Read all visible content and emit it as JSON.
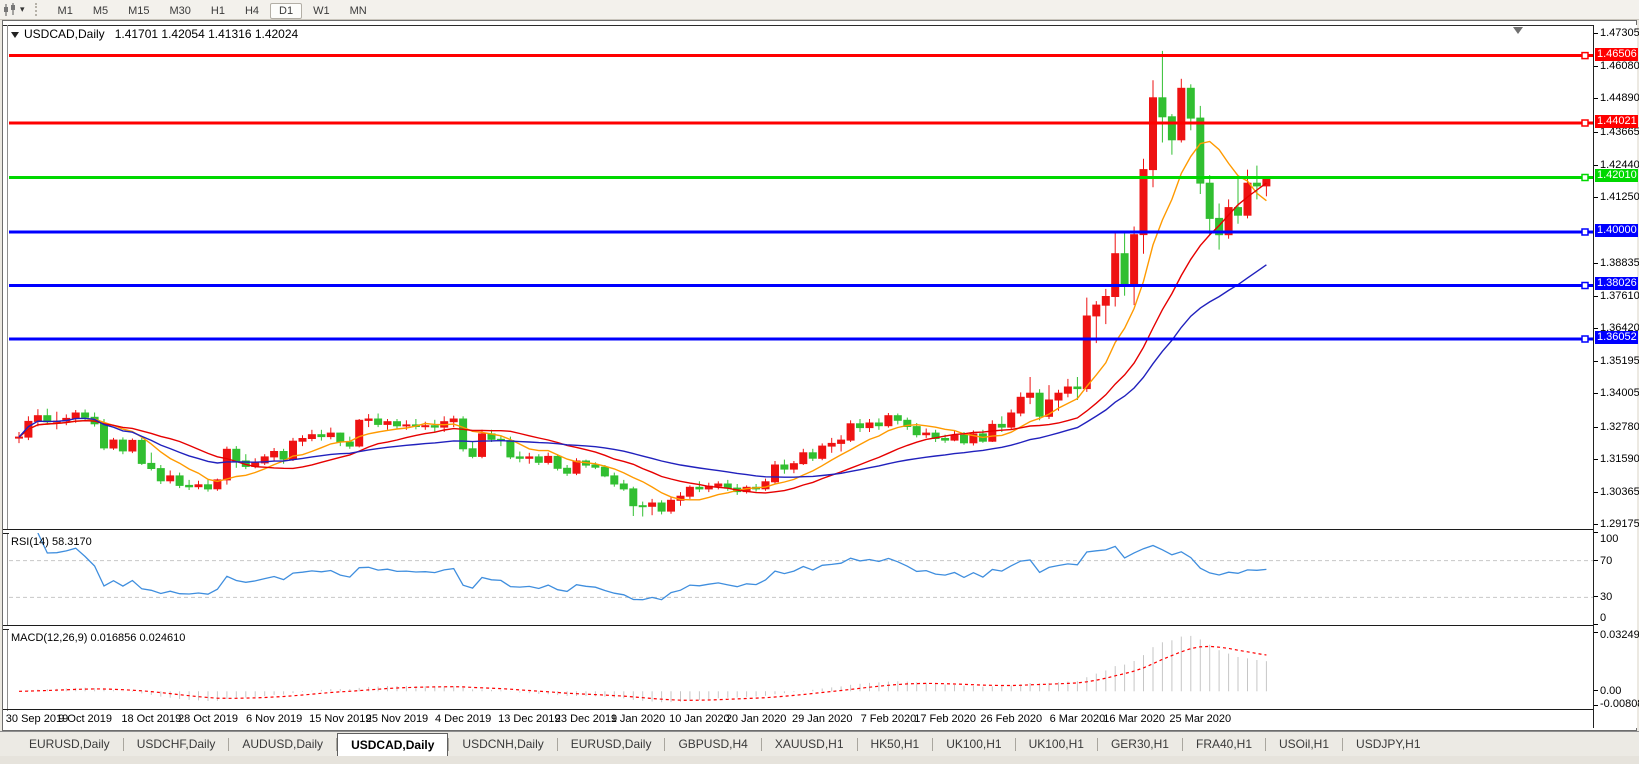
{
  "toolbar": {
    "timeframes": [
      "M1",
      "M5",
      "M15",
      "M30",
      "H1",
      "H4",
      "D1",
      "W1",
      "MN"
    ],
    "active_timeframe": "D1"
  },
  "chart_title": {
    "symbol": "USDCAD,Daily",
    "ohlc": "1.41701 1.42054 1.41316 1.42024"
  },
  "price_axis": {
    "ticks": [
      "1.47305",
      "1.46080",
      "1.44890",
      "1.43665",
      "1.42440",
      "1.41250",
      "1.38835",
      "1.37610",
      "1.36420",
      "1.35195",
      "1.34005",
      "1.32780",
      "1.31590",
      "1.30365",
      "1.29175"
    ]
  },
  "rsi": {
    "label": "RSI(14)",
    "value": "58.3170",
    "period": 14,
    "levels": [
      70,
      30
    ],
    "ticks": [
      "100",
      "70",
      "30",
      "0"
    ],
    "line_color": "#3f8ede",
    "level_color": "#c8c8c8",
    "range": [
      0,
      100
    ]
  },
  "macd": {
    "label": "MACD(12,26,9)",
    "macd_value": "0.016856",
    "signal_value": "0.024610",
    "fast": 12,
    "slow": 26,
    "signal": 9,
    "ticks": [
      {
        "label": "0.032493",
        "value": 0.032493
      },
      {
        "label": "0.00",
        "value": 0
      },
      {
        "label": "-0.008086",
        "value": -0.008086
      }
    ],
    "hist_color": "#c6c6c6",
    "signal_color": "#ff0000",
    "range": [
      -0.0098,
      0.0345
    ]
  },
  "tabs": {
    "items": [
      "EURUSD,Daily",
      "USDCHF,Daily",
      "AUDUSD,Daily",
      "USDCAD,Daily",
      "USDCNH,Daily",
      "EURUSD,Daily",
      "GBPUSD,H4",
      "XAUUSD,H1",
      "HK50,H1",
      "UK100,H1",
      "UK100,H1",
      "GER30,H1",
      "FRA40,H1",
      "USOil,H1",
      "USDJPY,H1"
    ],
    "active_index": 3
  },
  "chart_data": {
    "type": "candlestick",
    "symbol": "USDCAD",
    "timeframe": "Daily",
    "price_range": [
      1.2904,
      1.476
    ],
    "colors": {
      "up": "#ee1212",
      "down": "#31bf31"
    },
    "hlines": [
      {
        "price": 1.46506,
        "label": "1.46506",
        "color": "#ff0000"
      },
      {
        "price": 1.44021,
        "label": "1.44021",
        "color": "#ff0000"
      },
      {
        "price": 1.4201,
        "label": "1.42010",
        "color": "#00d800"
      },
      {
        "price": 1.4,
        "label": "1.40000",
        "color": "#0000ff"
      },
      {
        "price": 1.38026,
        "label": "1.38026",
        "color": "#0000ff"
      },
      {
        "price": 1.36052,
        "label": "1.36052",
        "color": "#0000ff"
      }
    ],
    "moving_averages": [
      {
        "type": "sma",
        "period": 8,
        "color": "#ff9a00"
      },
      {
        "type": "sma",
        "period": 17,
        "color": "#e60000"
      },
      {
        "type": "lwma",
        "period": 45,
        "color": "#2121bd"
      }
    ],
    "date_ticks": [
      {
        "label": "30 Sep 2019",
        "bar": 0
      },
      {
        "label": "9 Oct 2019",
        "bar": 7
      },
      {
        "label": "18 Oct 2019",
        "bar": 14
      },
      {
        "label": "28 Oct 2019",
        "bar": 20
      },
      {
        "label": "6 Nov 2019",
        "bar": 27
      },
      {
        "label": "15 Nov 2019",
        "bar": 34
      },
      {
        "label": "25 Nov 2019",
        "bar": 40
      },
      {
        "label": "4 Dec 2019",
        "bar": 47
      },
      {
        "label": "13 Dec 2019",
        "bar": 54
      },
      {
        "label": "23 Dec 2019",
        "bar": 60
      },
      {
        "label": "1 Jan 2020",
        "bar": 65.5
      },
      {
        "label": "10 Jan 2020",
        "bar": 72
      },
      {
        "label": "20 Jan 2020",
        "bar": 78
      },
      {
        "label": "29 Jan 2020",
        "bar": 85
      },
      {
        "label": "7 Feb 2020",
        "bar": 92
      },
      {
        "label": "17 Feb 2020",
        "bar": 98
      },
      {
        "label": "26 Feb 2020",
        "bar": 105
      },
      {
        "label": "6 Mar 2020",
        "bar": 112
      },
      {
        "label": "16 Mar 2020",
        "bar": 118
      },
      {
        "label": "25 Mar 2020",
        "bar": 125
      }
    ],
    "candles": [
      [
        1.324,
        1.3262,
        1.3221,
        1.3243
      ],
      [
        1.3243,
        1.332,
        1.3232,
        1.3301
      ],
      [
        1.3301,
        1.3346,
        1.3283,
        1.3322
      ],
      [
        1.3322,
        1.3348,
        1.3289,
        1.33
      ],
      [
        1.33,
        1.3337,
        1.3272,
        1.3302
      ],
      [
        1.3302,
        1.3327,
        1.3287,
        1.3312
      ],
      [
        1.3312,
        1.3343,
        1.3296,
        1.3332
      ],
      [
        1.3332,
        1.3345,
        1.3304,
        1.3316
      ],
      [
        1.3316,
        1.3334,
        1.3282,
        1.3292
      ],
      [
        1.3292,
        1.331,
        1.3195,
        1.3203
      ],
      [
        1.3203,
        1.324,
        1.3196,
        1.3232
      ],
      [
        1.3232,
        1.3242,
        1.318,
        1.3192
      ],
      [
        1.3192,
        1.3238,
        1.3184,
        1.3231
      ],
      [
        1.3231,
        1.324,
        1.314,
        1.3146
      ],
      [
        1.3146,
        1.3186,
        1.312,
        1.3127
      ],
      [
        1.3127,
        1.314,
        1.307,
        1.3082
      ],
      [
        1.3082,
        1.312,
        1.3072,
        1.31
      ],
      [
        1.31,
        1.3112,
        1.3055,
        1.3065
      ],
      [
        1.3065,
        1.3085,
        1.3048,
        1.306
      ],
      [
        1.306,
        1.3082,
        1.3051,
        1.3067
      ],
      [
        1.3067,
        1.3085,
        1.3042,
        1.3052
      ],
      [
        1.3052,
        1.309,
        1.3045,
        1.3085
      ],
      [
        1.3085,
        1.3208,
        1.3068,
        1.3198
      ],
      [
        1.3198,
        1.321,
        1.313,
        1.3155
      ],
      [
        1.3155,
        1.318,
        1.3125,
        1.3135
      ],
      [
        1.3135,
        1.3165,
        1.3128,
        1.3148
      ],
      [
        1.3148,
        1.318,
        1.314,
        1.317
      ],
      [
        1.317,
        1.3203,
        1.3155,
        1.319
      ],
      [
        1.319,
        1.32,
        1.3145,
        1.3162
      ],
      [
        1.3162,
        1.324,
        1.3155,
        1.3228
      ],
      [
        1.3228,
        1.325,
        1.321,
        1.3238
      ],
      [
        1.3238,
        1.327,
        1.3228,
        1.3252
      ],
      [
        1.3252,
        1.327,
        1.323,
        1.3245
      ],
      [
        1.3245,
        1.3278,
        1.3235,
        1.3258
      ],
      [
        1.3258,
        1.326,
        1.321,
        1.3225
      ],
      [
        1.3225,
        1.3245,
        1.32,
        1.321
      ],
      [
        1.321,
        1.331,
        1.3205,
        1.3305
      ],
      [
        1.3305,
        1.3328,
        1.328,
        1.331
      ],
      [
        1.331,
        1.333,
        1.328,
        1.329
      ],
      [
        1.329,
        1.331,
        1.327,
        1.33
      ],
      [
        1.33,
        1.331,
        1.3275,
        1.3285
      ],
      [
        1.3285,
        1.3305,
        1.327,
        1.3288
      ],
      [
        1.3288,
        1.331,
        1.3272,
        1.3282
      ],
      [
        1.3282,
        1.33,
        1.327,
        1.3285
      ],
      [
        1.3285,
        1.3307,
        1.3262,
        1.328
      ],
      [
        1.328,
        1.332,
        1.3262,
        1.33
      ],
      [
        1.33,
        1.3322,
        1.328,
        1.331
      ],
      [
        1.331,
        1.332,
        1.319,
        1.32
      ],
      [
        1.32,
        1.3225,
        1.3165,
        1.3172
      ],
      [
        1.3172,
        1.327,
        1.3165,
        1.3255
      ],
      [
        1.3255,
        1.327,
        1.3225,
        1.3235
      ],
      [
        1.3235,
        1.325,
        1.321,
        1.323
      ],
      [
        1.323,
        1.3245,
        1.3162,
        1.317
      ],
      [
        1.317,
        1.319,
        1.315,
        1.3165
      ],
      [
        1.3165,
        1.3185,
        1.3145,
        1.317
      ],
      [
        1.317,
        1.318,
        1.314,
        1.315
      ],
      [
        1.315,
        1.3186,
        1.3142,
        1.3172
      ],
      [
        1.3172,
        1.318,
        1.312,
        1.3128
      ],
      [
        1.3128,
        1.314,
        1.31,
        1.311
      ],
      [
        1.311,
        1.3165,
        1.3103,
        1.3155
      ],
      [
        1.3155,
        1.316,
        1.313,
        1.314
      ],
      [
        1.314,
        1.315,
        1.3125,
        1.3132
      ],
      [
        1.3132,
        1.314,
        1.3095,
        1.31
      ],
      [
        1.31,
        1.3112,
        1.306,
        1.307
      ],
      [
        1.307,
        1.3085,
        1.3045,
        1.3052
      ],
      [
        1.3052,
        1.306,
        1.2952,
        1.299
      ],
      [
        1.299,
        1.3005,
        1.295,
        1.2988
      ],
      [
        1.2988,
        1.3015,
        1.2955,
        1.3
      ],
      [
        1.3,
        1.301,
        1.2958,
        1.297
      ],
      [
        1.297,
        1.3022,
        1.296,
        1.301
      ],
      [
        1.301,
        1.304,
        1.299,
        1.3025
      ],
      [
        1.3025,
        1.3065,
        1.3015,
        1.3058
      ],
      [
        1.3058,
        1.308,
        1.304,
        1.3052
      ],
      [
        1.3052,
        1.3075,
        1.304,
        1.3062
      ],
      [
        1.3062,
        1.308,
        1.305,
        1.307
      ],
      [
        1.307,
        1.3085,
        1.3045,
        1.3055
      ],
      [
        1.3055,
        1.307,
        1.303,
        1.3042
      ],
      [
        1.3042,
        1.3065,
        1.3035,
        1.3058
      ],
      [
        1.3058,
        1.307,
        1.3042,
        1.3052
      ],
      [
        1.3052,
        1.309,
        1.3045,
        1.3078
      ],
      [
        1.3078,
        1.3155,
        1.307,
        1.314
      ],
      [
        1.314,
        1.316,
        1.3108,
        1.3125
      ],
      [
        1.3125,
        1.3155,
        1.311,
        1.3145
      ],
      [
        1.3145,
        1.32,
        1.314,
        1.3185
      ],
      [
        1.3185,
        1.32,
        1.3155,
        1.3165
      ],
      [
        1.3165,
        1.322,
        1.3158,
        1.321
      ],
      [
        1.321,
        1.324,
        1.3185,
        1.322
      ],
      [
        1.322,
        1.325,
        1.319,
        1.3232
      ],
      [
        1.3232,
        1.3305,
        1.3225,
        1.3292
      ],
      [
        1.3292,
        1.331,
        1.3262,
        1.3278
      ],
      [
        1.3278,
        1.331,
        1.3262,
        1.3295
      ],
      [
        1.3295,
        1.3312,
        1.327,
        1.3285
      ],
      [
        1.3285,
        1.3332,
        1.3278,
        1.3322
      ],
      [
        1.3322,
        1.333,
        1.329,
        1.3305
      ],
      [
        1.3305,
        1.3315,
        1.327,
        1.3282
      ],
      [
        1.3282,
        1.3295,
        1.3242,
        1.3252
      ],
      [
        1.3252,
        1.3275,
        1.324,
        1.3258
      ],
      [
        1.3258,
        1.327,
        1.3225,
        1.3238
      ],
      [
        1.3238,
        1.3252,
        1.3222,
        1.3232
      ],
      [
        1.3232,
        1.3268,
        1.3228,
        1.325
      ],
      [
        1.325,
        1.3262,
        1.3215,
        1.3222
      ],
      [
        1.3222,
        1.3268,
        1.3212,
        1.3255
      ],
      [
        1.3255,
        1.327,
        1.3222,
        1.3228
      ],
      [
        1.3228,
        1.3305,
        1.3225,
        1.329
      ],
      [
        1.329,
        1.332,
        1.3262,
        1.328
      ],
      [
        1.328,
        1.3345,
        1.327,
        1.3332
      ],
      [
        1.3332,
        1.3408,
        1.332,
        1.339
      ],
      [
        1.339,
        1.3465,
        1.3365,
        1.3405
      ],
      [
        1.3405,
        1.342,
        1.3305,
        1.332
      ],
      [
        1.332,
        1.3435,
        1.331,
        1.338
      ],
      [
        1.338,
        1.3418,
        1.334,
        1.3405
      ],
      [
        1.3405,
        1.3458,
        1.339,
        1.3428
      ],
      [
        1.3428,
        1.3465,
        1.338,
        1.3422
      ],
      [
        1.3422,
        1.3758,
        1.341,
        1.369
      ],
      [
        1.369,
        1.3745,
        1.359,
        1.373
      ],
      [
        1.373,
        1.379,
        1.366,
        1.3762
      ],
      [
        1.3762,
        1.3995,
        1.3725,
        1.392
      ],
      [
        1.392,
        1.3998,
        1.3765,
        1.38
      ],
      [
        1.38,
        1.402,
        1.373,
        1.399
      ],
      [
        1.399,
        1.427,
        1.392,
        1.423
      ],
      [
        1.423,
        1.456,
        1.4165,
        1.4495
      ],
      [
        1.4495,
        1.4668,
        1.433,
        1.4425
      ],
      [
        1.4425,
        1.4435,
        1.4285,
        1.434
      ],
      [
        1.434,
        1.4565,
        1.433,
        1.453
      ],
      [
        1.453,
        1.4545,
        1.4375,
        1.442
      ],
      [
        1.442,
        1.4465,
        1.414,
        1.418
      ],
      [
        1.418,
        1.421,
        1.399,
        1.405
      ],
      [
        1.405,
        1.4105,
        1.3935,
        1.399
      ],
      [
        1.399,
        1.412,
        1.3975,
        1.409
      ],
      [
        1.409,
        1.42,
        1.403,
        1.4062
      ],
      [
        1.4062,
        1.423,
        1.405,
        1.418
      ],
      [
        1.418,
        1.4245,
        1.412,
        1.417
      ],
      [
        1.41701,
        1.42054,
        1.41316,
        1.42024
      ]
    ]
  }
}
